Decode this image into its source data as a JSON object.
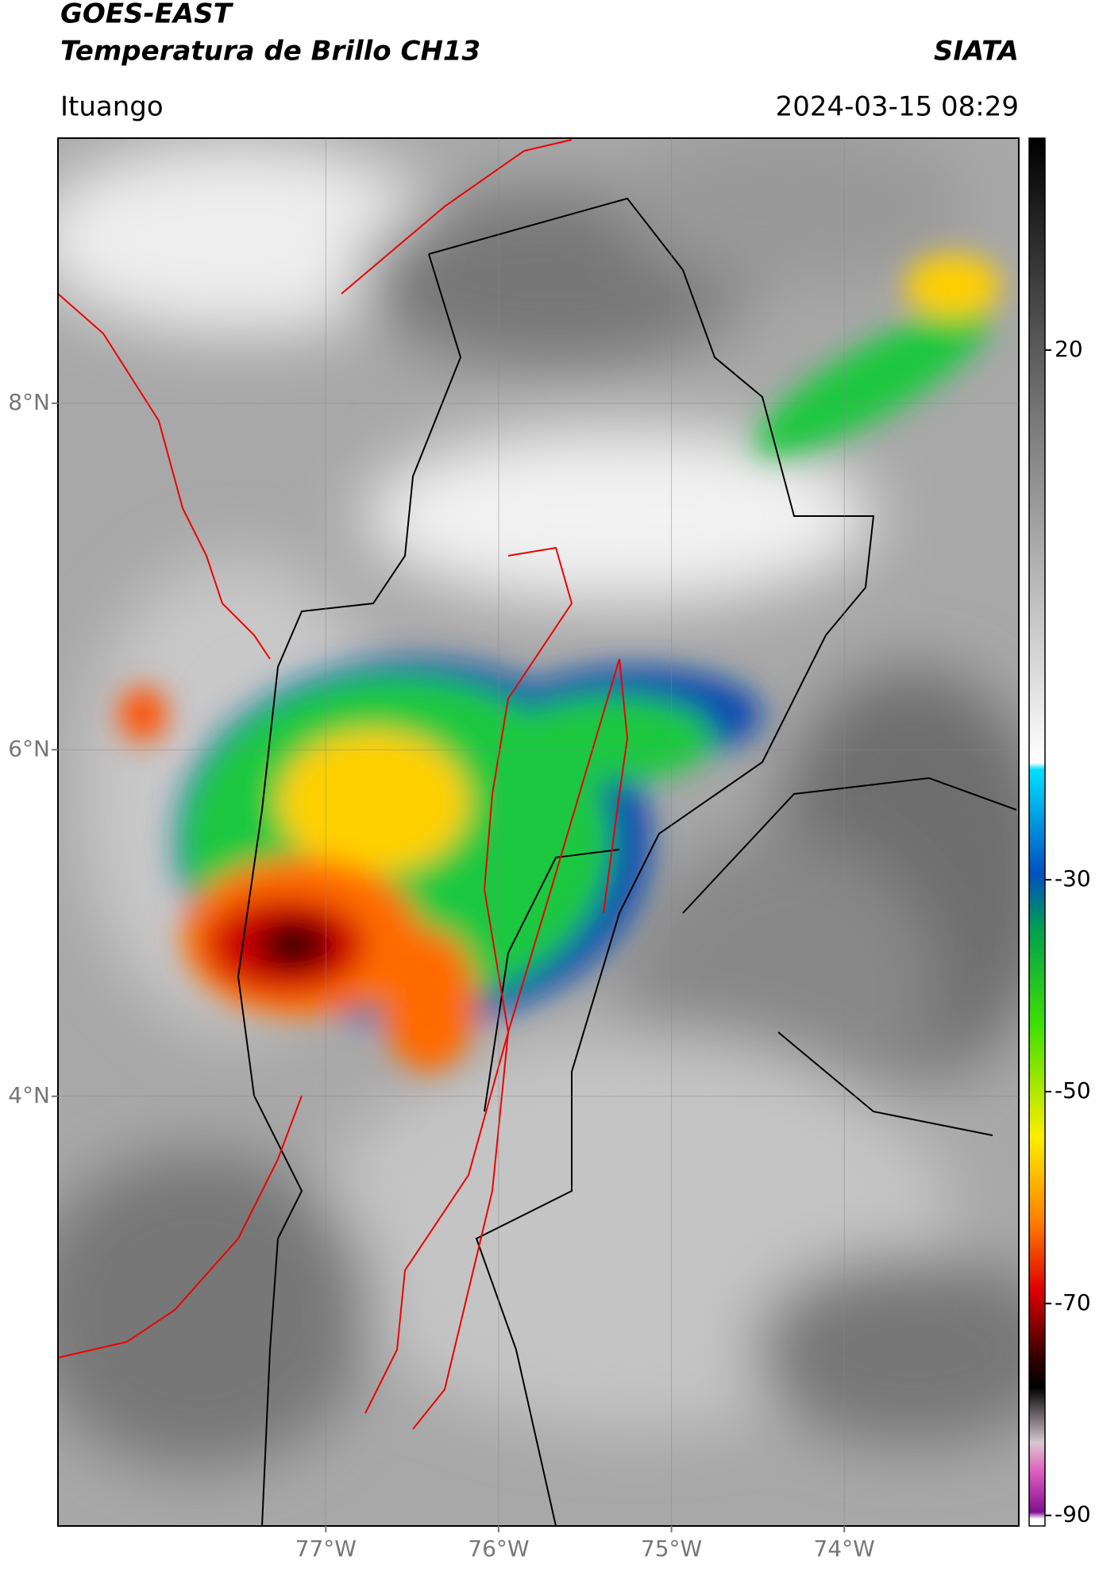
{
  "header": {
    "title": "GOES-EAST",
    "subtitle": "Temperatura de Brillo CH13",
    "source": "SIATA",
    "location": "Ituango",
    "datetime": "2024-03-15 08:29"
  },
  "map": {
    "lat_lim": [
      1.52,
      9.53
    ],
    "lon_lim": [
      -78.55,
      -72.99
    ],
    "lat_ticks": [
      {
        "value": 8,
        "label": "8°N"
      },
      {
        "value": 6,
        "label": "6°N"
      },
      {
        "value": 4,
        "label": "4°N"
      }
    ],
    "lon_ticks": [
      {
        "value": -77,
        "label": "77°W"
      },
      {
        "value": -76,
        "label": "76°W"
      },
      {
        "value": -75,
        "label": "75°W"
      },
      {
        "value": -74,
        "label": "74°W"
      }
    ],
    "grid": true
  },
  "colorbar": {
    "lim": [
      -91,
      40
    ],
    "ticks": [
      20,
      -30,
      -50,
      -70,
      -90
    ]
  }
}
